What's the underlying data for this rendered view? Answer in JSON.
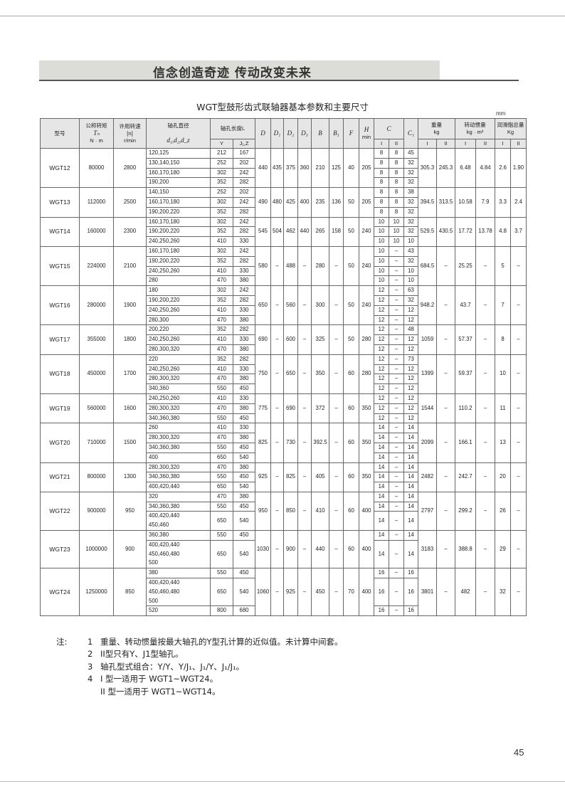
{
  "banner": "信念创造奇迹  传动改变未来",
  "title": "WGT型鼓形齿式联轴器基本参数和主要尺寸",
  "unit": "mm",
  "header": {
    "model": "型号",
    "torque": "公称转矩",
    "torque_sym": "Tₙ",
    "torque_unit": "N · m",
    "speed": "许用转速",
    "speed_sym": "[n]",
    "speed_unit": "r/min",
    "bore": "轴孔直径",
    "bore_sym": "d₁,d₂,d_z",
    "length": "轴孔长度L",
    "length_Y": "Y",
    "length_J": "J₁,Z",
    "D": "D",
    "D1": "D₁",
    "D2": "D₂",
    "D3": "D₃",
    "B": "B",
    "B1": "B₁",
    "F": "F",
    "H": "H",
    "H_min": "min",
    "C": "C",
    "C_I": "I",
    "C_II": "II",
    "C1": "C₁",
    "weight": "重量",
    "weight_unit": "kg",
    "weight_I": "I",
    "weight_II": "II",
    "inertia": "转动惯量",
    "inertia_unit": "kg · m²",
    "inertia_I": "I",
    "inertia_II": "II",
    "grease": "润滑脂总量",
    "grease_unit": "Kg",
    "grease_I": "I",
    "grease_II": "II"
  },
  "rows": [
    {
      "model": "WGT12",
      "torque": "80000",
      "speed": "2800",
      "bores": [
        {
          "d": "120,125",
          "Y": "212",
          "J": "167",
          "CI": "8",
          "CII": "8",
          "C1": "45"
        },
        {
          "d": "130,140,150",
          "Y": "252",
          "J": "202",
          "CI": "8",
          "CII": "8",
          "C1": "32"
        },
        {
          "d": "160,170,180",
          "Y": "302",
          "J": "242",
          "CI": "8",
          "CII": "8",
          "C1": "32"
        },
        {
          "d": "190,200",
          "Y": "352",
          "J": "282",
          "CI": "8",
          "CII": "8",
          "C1": "32"
        }
      ],
      "D": "440",
      "D1": "435",
      "D2": "375",
      "D3": "360",
      "B": "210",
      "B1": "125",
      "F": "40",
      "H": "205",
      "wI": "305.3",
      "wII": "245.3",
      "iI": "6.48",
      "iII": "4.84",
      "gI": "2.6",
      "gII": "1.90"
    },
    {
      "model": "WGT13",
      "torque": "112000",
      "speed": "2500",
      "bores": [
        {
          "d": "140,150",
          "Y": "252",
          "J": "202",
          "CI": "8",
          "CII": "8",
          "C1": "38"
        },
        {
          "d": "160,170,180",
          "Y": "302",
          "J": "242",
          "CI": "8",
          "CII": "8",
          "C1": "32"
        },
        {
          "d": "190,200,220",
          "Y": "352",
          "J": "282",
          "CI": "8",
          "CII": "8",
          "C1": "32"
        }
      ],
      "D": "490",
      "D1": "480",
      "D2": "425",
      "D3": "400",
      "B": "235",
      "B1": "136",
      "F": "50",
      "H": "205",
      "wI": "394.5",
      "wII": "313.5",
      "iI": "10.58",
      "iII": "7.9",
      "gI": "3.3",
      "gII": "2.4"
    },
    {
      "model": "WGT14",
      "torque": "160000",
      "speed": "2300",
      "bores": [
        {
          "d": "160,170,180",
          "Y": "302",
          "J": "242",
          "CI": "10",
          "CII": "10",
          "C1": "32"
        },
        {
          "d": "190,200,220",
          "Y": "352",
          "J": "282",
          "CI": "10",
          "CII": "10",
          "C1": "32"
        },
        {
          "d": "240,250,260",
          "Y": "410",
          "J": "330",
          "CI": "10",
          "CII": "10",
          "C1": "10"
        }
      ],
      "D": "545",
      "D1": "504",
      "D2": "462",
      "D3": "440",
      "B": "265",
      "B1": "158",
      "F": "50",
      "H": "240",
      "wI": "529.5",
      "wII": "430.5",
      "iI": "17.72",
      "iII": "13.78",
      "gI": "4.8",
      "gII": "3.7"
    },
    {
      "model": "WGT15",
      "torque": "224000",
      "speed": "2100",
      "bores": [
        {
          "d": "160,170,180",
          "Y": "302",
          "J": "242",
          "CI": "10",
          "CII": "–",
          "C1": "43"
        },
        {
          "d": "190,200,220",
          "Y": "352",
          "J": "282",
          "CI": "10",
          "CII": "–",
          "C1": "32"
        },
        {
          "d": "240,250,260",
          "Y": "410",
          "J": "330",
          "CI": "10",
          "CII": "–",
          "C1": "10"
        },
        {
          "d": "280",
          "Y": "470",
          "J": "380",
          "CI": "10",
          "CII": "–",
          "C1": "10"
        }
      ],
      "D": "580",
      "D1": "–",
      "D2": "488",
      "D3": "–",
      "B": "280",
      "B1": "–",
      "F": "50",
      "H": "240",
      "wI": "684.5",
      "wII": "–",
      "iI": "25.25",
      "iII": "–",
      "gI": "5",
      "gII": "–"
    },
    {
      "model": "WGT16",
      "torque": "280000",
      "speed": "1900",
      "bores": [
        {
          "d": "180",
          "Y": "302",
          "J": "242",
          "CI": "12",
          "CII": "–",
          "C1": "63"
        },
        {
          "d": "190,200,220",
          "Y": "352",
          "J": "282",
          "CI": "12",
          "CII": "–",
          "C1": "32"
        },
        {
          "d": "240,250,260",
          "Y": "410",
          "J": "330",
          "CI": "12",
          "CII": "–",
          "C1": "12"
        },
        {
          "d": "280,300",
          "Y": "470",
          "J": "380",
          "CI": "12",
          "CII": "–",
          "C1": "12"
        }
      ],
      "D": "650",
      "D1": "–",
      "D2": "560",
      "D3": "–",
      "B": "300",
      "B1": "–",
      "F": "50",
      "H": "240",
      "wI": "948.2",
      "wII": "–",
      "iI": "43.7",
      "iII": "–",
      "gI": "7",
      "gII": "–"
    },
    {
      "model": "WGT17",
      "torque": "355000",
      "speed": "1800",
      "bores": [
        {
          "d": "200,220",
          "Y": "352",
          "J": "282",
          "CI": "12",
          "CII": "–",
          "C1": "48"
        },
        {
          "d": "240,250,260",
          "Y": "410",
          "J": "330",
          "CI": "12",
          "CII": "–",
          "C1": "12"
        },
        {
          "d": "280,300,320",
          "Y": "470",
          "J": "380",
          "CI": "12",
          "CII": "–",
          "C1": "12"
        }
      ],
      "D": "690",
      "D1": "–",
      "D2": "600",
      "D3": "–",
      "B": "325",
      "B1": "–",
      "F": "50",
      "H": "280",
      "wI": "1059",
      "wII": "–",
      "iI": "57.37",
      "iII": "–",
      "gI": "8",
      "gII": "–"
    },
    {
      "model": "WGT18",
      "torque": "450000",
      "speed": "1700",
      "bores": [
        {
          "d": "220",
          "Y": "352",
          "J": "282",
          "CI": "12",
          "CII": "–",
          "C1": "73"
        },
        {
          "d": "240,250,260",
          "Y": "410",
          "J": "330",
          "CI": "12",
          "CII": "–",
          "C1": "12"
        },
        {
          "d": "280,300,320",
          "Y": "470",
          "J": "380",
          "CI": "12",
          "CII": "–",
          "C1": "12"
        },
        {
          "d": "340,360",
          "Y": "550",
          "J": "450",
          "CI": "12",
          "CII": "–",
          "C1": "12"
        }
      ],
      "D": "750",
      "D1": "–",
      "D2": "650",
      "D3": "–",
      "B": "350",
      "B1": "–",
      "F": "60",
      "H": "280",
      "wI": "1399",
      "wII": "–",
      "iI": "59.37",
      "iII": "–",
      "gI": "10",
      "gII": "–"
    },
    {
      "model": "WGT19",
      "torque": "560000",
      "speed": "1600",
      "bores": [
        {
          "d": "240,250,260",
          "Y": "410",
          "J": "330",
          "CI": "12",
          "CII": "–",
          "C1": "12"
        },
        {
          "d": "280,300,320",
          "Y": "470",
          "J": "380",
          "CI": "12",
          "CII": "–",
          "C1": "12"
        },
        {
          "d": "340,360,380",
          "Y": "550",
          "J": "450",
          "CI": "12",
          "CII": "–",
          "C1": "12"
        }
      ],
      "D": "775",
      "D1": "–",
      "D2": "690",
      "D3": "–",
      "B": "372",
      "B1": "–",
      "F": "60",
      "H": "350",
      "wI": "1544",
      "wII": "–",
      "iI": "110.2",
      "iII": "–",
      "gI": "11",
      "gII": "–"
    },
    {
      "model": "WGT20",
      "torque": "710000",
      "speed": "1500",
      "bores": [
        {
          "d": "260",
          "Y": "410",
          "J": "330",
          "CI": "14",
          "CII": "–",
          "C1": "14"
        },
        {
          "d": "280,300,320",
          "Y": "470",
          "J": "380",
          "CI": "14",
          "CII": "–",
          "C1": "14"
        },
        {
          "d": "340,360,380",
          "Y": "550",
          "J": "450",
          "CI": "14",
          "CII": "–",
          "C1": "14"
        },
        {
          "d": "400",
          "Y": "650",
          "J": "540",
          "CI": "14",
          "CII": "–",
          "C1": "14"
        }
      ],
      "D": "825",
      "D1": "–",
      "D2": "730",
      "D3": "–",
      "B": "392.5",
      "B1": "–",
      "F": "60",
      "H": "350",
      "wI": "2099",
      "wII": "–",
      "iI": "166.1",
      "iII": "–",
      "gI": "13",
      "gII": "–"
    },
    {
      "model": "WGT21",
      "torque": "800000",
      "speed": "1300",
      "bores": [
        {
          "d": "280,300,320",
          "Y": "470",
          "J": "380",
          "CI": "14",
          "CII": "–",
          "C1": "14"
        },
        {
          "d": "340,360,380",
          "Y": "550",
          "J": "450",
          "CI": "14",
          "CII": "–",
          "C1": "14"
        },
        {
          "d": "400,420,440",
          "Y": "650",
          "J": "540",
          "CI": "14",
          "CII": "–",
          "C1": "14"
        }
      ],
      "D": "925",
      "D1": "–",
      "D2": "825",
      "D3": "–",
      "B": "405",
      "B1": "–",
      "F": "60",
      "H": "350",
      "wI": "2482",
      "wII": "–",
      "iI": "242.7",
      "iII": "–",
      "gI": "20",
      "gII": "–"
    },
    {
      "model": "WGT22",
      "torque": "900000",
      "speed": "950",
      "bores": [
        {
          "d": "320",
          "Y": "470",
          "J": "380",
          "CI": "14",
          "CII": "–",
          "C1": "14"
        },
        {
          "d": "340,360,380",
          "Y": "550",
          "J": "450",
          "CI": "14",
          "CII": "–",
          "C1": "14"
        },
        {
          "d": "400,420,440\n450,460",
          "Y": "650",
          "J": "540",
          "CI": "14",
          "CII": "–",
          "C1": "14"
        }
      ],
      "D": "950",
      "D1": "–",
      "D2": "850",
      "D3": "–",
      "B": "410",
      "B1": "–",
      "F": "60",
      "H": "400",
      "wI": "2797",
      "wII": "–",
      "iI": "299.2",
      "iII": "–",
      "gI": "26",
      "gII": "–"
    },
    {
      "model": "WGT23",
      "torque": "1000000",
      "speed": "900",
      "bores": [
        {
          "d": "360,380",
          "Y": "550",
          "J": "450",
          "CI": "14",
          "CII": "–",
          "C1": "14"
        },
        {
          "d": "400,420,440\n450,460,480\n500",
          "Y": "650",
          "J": "540",
          "CI": "14",
          "CII": "–",
          "C1": "14"
        }
      ],
      "D": "1030",
      "D1": "–",
      "D2": "900",
      "D3": "–",
      "B": "440",
      "B1": "–",
      "F": "60",
      "H": "400",
      "wI": "3183",
      "wII": "–",
      "iI": "388.8",
      "iII": "–",
      "gI": "29",
      "gII": "–"
    },
    {
      "model": "WGT24",
      "torque": "1250000",
      "speed": "850",
      "bores": [
        {
          "d": "380",
          "Y": "550",
          "J": "450",
          "CI": "16",
          "CII": "–",
          "C1": "16"
        },
        {
          "d": "400,420,440\n450,460,480\n500",
          "Y": "650",
          "J": "540",
          "CI": "16",
          "CII": "–",
          "C1": "16"
        },
        {
          "d": "520",
          "Y": "800",
          "J": "680",
          "CI": "16",
          "CII": "–",
          "C1": "16"
        }
      ],
      "D": "1060",
      "D1": "–",
      "D2": "925",
      "D3": "–",
      "B": "450",
      "B1": "–",
      "F": "70",
      "H": "400",
      "wI": "3801",
      "wII": "–",
      "iI": "482",
      "iII": "–",
      "gI": "32",
      "gII": "–"
    }
  ],
  "notes": {
    "label": "注:",
    "items": [
      {
        "num": "1",
        "text": "重量、转动惯量按最大轴孔的Y型孔计算的近似值。未计算中间套。"
      },
      {
        "num": "2",
        "text": "II型只有Y、J1型轴孔。"
      },
      {
        "num": "3",
        "text": "轴孔型式组合：Y/Y、Y/J₁、J₁/Y、J₁/J₁。"
      },
      {
        "num": "4",
        "text": "I 型一适用于   WGT1~WGT24。"
      },
      {
        "num": "",
        "text": "II 型一适用于   WGT1~WGT14。"
      }
    ]
  },
  "page_number": "45"
}
